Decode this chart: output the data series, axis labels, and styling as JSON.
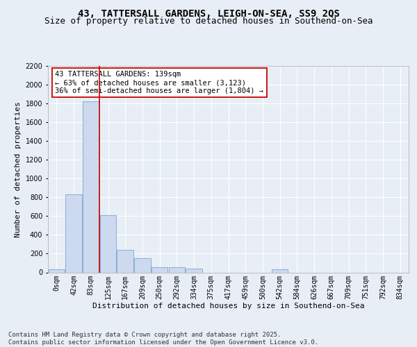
{
  "title1": "43, TATTERSALL GARDENS, LEIGH-ON-SEA, SS9 2QS",
  "title2": "Size of property relative to detached houses in Southend-on-Sea",
  "xlabel": "Distribution of detached houses by size in Southend-on-Sea",
  "ylabel": "Number of detached properties",
  "bar_labels": [
    "0sqm",
    "42sqm",
    "83sqm",
    "125sqm",
    "167sqm",
    "209sqm",
    "250sqm",
    "292sqm",
    "334sqm",
    "375sqm",
    "417sqm",
    "459sqm",
    "500sqm",
    "542sqm",
    "584sqm",
    "626sqm",
    "667sqm",
    "709sqm",
    "751sqm",
    "792sqm",
    "834sqm"
  ],
  "bar_values": [
    30,
    830,
    1820,
    610,
    240,
    150,
    55,
    55,
    40,
    0,
    0,
    0,
    0,
    30,
    0,
    0,
    0,
    0,
    0,
    0,
    0
  ],
  "bar_color": "#ccd9ee",
  "bar_edge_color": "#7ba7d4",
  "ylim": [
    0,
    2200
  ],
  "yticks": [
    0,
    200,
    400,
    600,
    800,
    1000,
    1200,
    1400,
    1600,
    1800,
    2000,
    2200
  ],
  "vline_x": 2.5,
  "vline_color": "#cc0000",
  "annotation_text": "43 TATTERSALL GARDENS: 139sqm\n← 63% of detached houses are smaller (3,123)\n36% of semi-detached houses are larger (1,804) →",
  "annotation_box_color": "#ffffff",
  "annotation_box_edge": "#cc0000",
  "footnote": "Contains HM Land Registry data © Crown copyright and database right 2025.\nContains public sector information licensed under the Open Government Licence v3.0.",
  "bg_color": "#e8eef5",
  "plot_bg_color": "#e8eef5",
  "title1_fontsize": 10,
  "title2_fontsize": 9,
  "xlabel_fontsize": 8,
  "ylabel_fontsize": 8,
  "footnote_fontsize": 6.5,
  "tick_fontsize": 7,
  "annot_fontsize": 7.5
}
